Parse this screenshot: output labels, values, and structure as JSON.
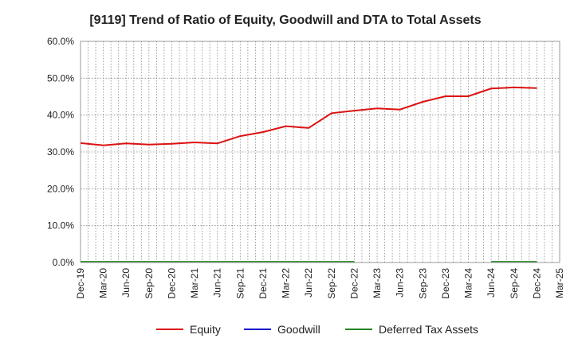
{
  "chart_data": {
    "type": "line",
    "title": "[9119]  Trend of Ratio of Equity, Goodwill and DTA to Total Assets",
    "xlabel": "",
    "ylabel": "",
    "ylim": [
      0,
      60
    ],
    "y_ticks": [
      "0.0%",
      "10.0%",
      "20.0%",
      "30.0%",
      "40.0%",
      "50.0%",
      "60.0%"
    ],
    "y_tick_values": [
      0,
      10,
      20,
      30,
      40,
      50,
      60
    ],
    "x_ticks": [
      "Dec-19",
      "Mar-20",
      "Jun-20",
      "Sep-20",
      "Dec-20",
      "Mar-21",
      "Jun-21",
      "Sep-21",
      "Dec-21",
      "Mar-22",
      "Jun-22",
      "Sep-22",
      "Dec-22",
      "Mar-23",
      "Jun-23",
      "Sep-23",
      "Dec-23",
      "Mar-24",
      "Jun-24",
      "Sep-24",
      "Dec-24",
      "Mar-25"
    ],
    "grid": true,
    "legend_position": "bottom",
    "series": [
      {
        "name": "Equity",
        "color": "#dd1111",
        "values": [
          32.4,
          31.8,
          32.3,
          32.0,
          32.2,
          32.6,
          32.3,
          34.3,
          35.4,
          37.0,
          36.5,
          40.5,
          41.2,
          41.8,
          41.5,
          43.6,
          45.1,
          45.1,
          47.2,
          47.5,
          47.3,
          null
        ]
      },
      {
        "name": "Goodwill",
        "color": "#1111cc",
        "values": [
          null,
          null,
          null,
          null,
          null,
          null,
          null,
          null,
          null,
          null,
          null,
          null,
          null,
          null,
          null,
          null,
          null,
          null,
          null,
          null,
          null,
          null
        ]
      },
      {
        "name": "Deferred Tax Assets",
        "color": "#228822",
        "values": [
          0.2,
          0.2,
          0.2,
          0.2,
          0.2,
          0.2,
          0.2,
          0.2,
          0.2,
          0.2,
          0.2,
          0.2,
          0.2,
          null,
          null,
          null,
          null,
          null,
          0.2,
          0.2,
          0.2,
          null
        ]
      }
    ]
  }
}
